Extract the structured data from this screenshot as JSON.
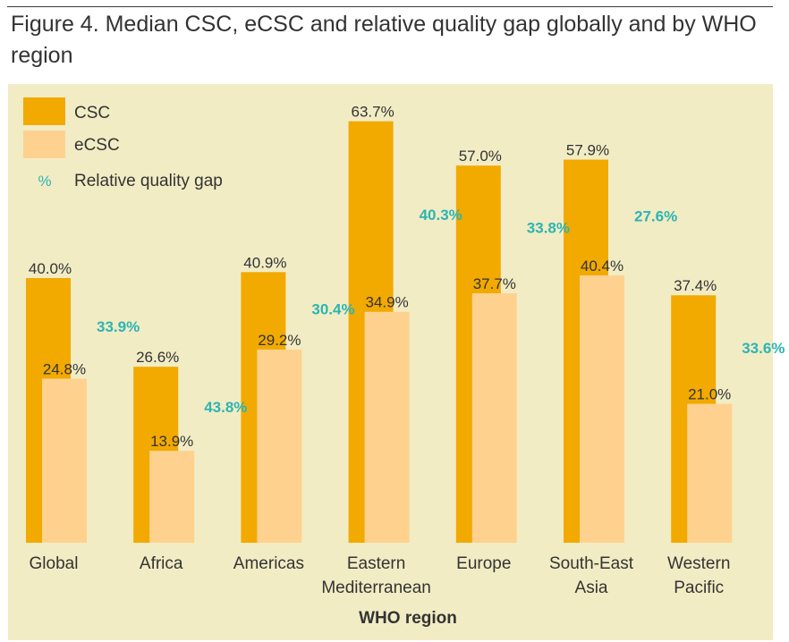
{
  "figure": {
    "title": "Figure 4. Median CSC, eCSC and relative quality gap globally and by WHO region"
  },
  "colors": {
    "csc": "#f2a900",
    "ecsc": "#fed28e",
    "gap": "#2bb5b3",
    "panel": "#f2ecc4",
    "text": "#333333"
  },
  "chart_data": {
    "type": "bar",
    "categories": [
      "Global",
      "Africa",
      "Americas",
      "Eastern Mediterranean",
      "Europe",
      "South-East Asia",
      "Western Pacific"
    ],
    "category_lines": [
      [
        "Global"
      ],
      [
        "Africa"
      ],
      [
        "Americas"
      ],
      [
        "Eastern",
        "Mediterranean"
      ],
      [
        "Europe"
      ],
      [
        "South-East",
        "Asia"
      ],
      [
        "Western",
        "Pacific"
      ]
    ],
    "series": [
      {
        "name": "CSC",
        "values": [
          40.0,
          26.6,
          40.9,
          63.7,
          57.0,
          57.9,
          37.4
        ],
        "labels": [
          "40.0%",
          "26.6%",
          "40.9%",
          "63.7%",
          "57.0%",
          "57.9%",
          "37.4%"
        ]
      },
      {
        "name": "eCSC",
        "values": [
          24.8,
          13.9,
          29.2,
          34.9,
          37.7,
          40.4,
          21.0
        ],
        "labels": [
          "24.8%",
          "13.9%",
          "29.2%",
          "34.9%",
          "37.7%",
          "40.4%",
          "21.0%"
        ]
      }
    ],
    "relative_quality_gap": {
      "name": "Relative quality gap",
      "values": [
        33.9,
        43.8,
        30.4,
        40.3,
        33.8,
        27.6,
        33.6
      ],
      "labels": [
        "33.9%",
        "43.8%",
        "30.4%",
        "40.3%",
        "33.8%",
        "27.6%",
        "33.6%"
      ]
    },
    "legend": {
      "position": "top-left",
      "entries": [
        "CSC",
        "eCSC",
        "Relative quality gap"
      ],
      "gap_symbol": "%"
    },
    "xlabel": "WHO region",
    "ylabel": "",
    "ylim": [
      0,
      63.7
    ],
    "grid": false
  }
}
